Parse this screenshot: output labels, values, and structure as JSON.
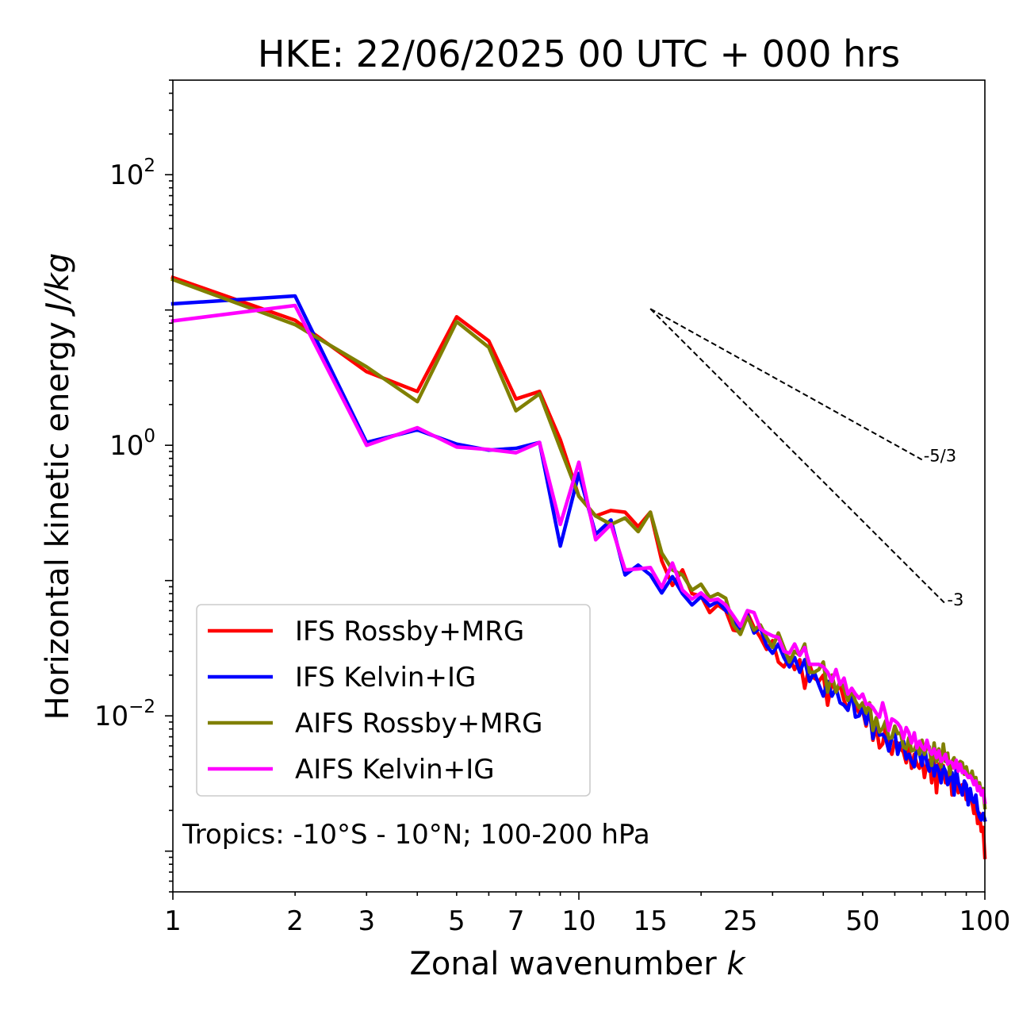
{
  "chart_data": {
    "type": "line",
    "title": "HKE: 22/06/2025 00 UTC + 000 hrs",
    "xlabel": "Zonal wavenumber",
    "xlabel_var": "k",
    "ylabel": "Horizontal kinetic energy",
    "ylabel_unit": "J/kg",
    "xscale": "log",
    "yscale": "log",
    "xlim": [
      1,
      100
    ],
    "ylim": [
      0.0005,
      500
    ],
    "x_ticks": [
      1,
      2,
      3,
      5,
      7,
      10,
      15,
      25,
      50,
      100
    ],
    "x_tick_labels": [
      "1",
      "2",
      "3",
      "5",
      "7",
      "10",
      "15",
      "25",
      "50",
      "100"
    ],
    "y_ticks": [
      {
        "base": "10",
        "exp": "2",
        "value": 100
      },
      {
        "base": "10",
        "exp": "0",
        "value": 1
      },
      {
        "base": "10",
        "exp": "−2",
        "value": 0.01
      }
    ],
    "grid": false,
    "legend_position": "lower-left",
    "annotation": "Tropics: -10°S - 10°N; 100-200 hPa",
    "reference_slopes": [
      {
        "label": "-5/3",
        "x_start": 15,
        "y_start": 10.2,
        "x_end": 70,
        "slope": -1.6667
      },
      {
        "label": "-3",
        "x_start": 15,
        "y_start": 10.2,
        "x_end": 80,
        "slope": -3
      }
    ],
    "x": [
      1,
      2,
      3,
      4,
      5,
      6,
      7,
      8,
      9,
      10,
      11,
      12,
      13,
      14,
      15,
      16,
      17,
      18,
      19,
      20,
      21,
      22,
      23,
      24,
      25,
      26,
      27,
      28,
      29,
      30,
      31,
      32,
      33,
      34,
      35,
      36,
      37,
      38,
      39,
      40,
      41,
      42,
      43,
      44,
      45,
      46,
      47,
      48,
      49,
      50,
      51,
      52,
      53,
      54,
      55,
      56,
      57,
      58,
      59,
      60,
      61,
      62,
      63,
      64,
      65,
      66,
      67,
      68,
      69,
      70,
      71,
      72,
      73,
      74,
      75,
      76,
      77,
      78,
      79,
      80,
      81,
      82,
      83,
      84,
      85,
      86,
      87,
      88,
      89,
      90,
      91,
      92,
      93,
      94,
      95,
      96,
      97,
      98,
      99,
      100
    ],
    "series": [
      {
        "name": "IFS Rossby+MRG",
        "color": "#ff0000",
        "values": [
          17.4,
          8.4,
          3.5,
          2.5,
          8.9,
          5.9,
          2.2,
          2.5,
          1.1,
          0.42,
          0.3,
          0.33,
          0.32,
          0.25,
          0.32,
          0.14,
          0.092,
          0.12,
          0.08,
          0.077,
          0.058,
          0.066,
          0.06,
          0.043,
          0.042,
          0.058,
          0.045,
          0.038,
          0.031,
          0.036,
          0.025,
          0.023,
          0.027,
          0.022,
          0.026,
          0.016,
          0.024,
          0.019,
          0.018,
          0.02,
          0.012,
          0.018,
          0.015,
          0.017,
          0.013,
          0.011,
          0.015,
          0.012,
          0.0105,
          0.011,
          0.0084,
          0.0115,
          0.0066,
          0.0083,
          0.0058,
          0.0062,
          0.0084,
          0.0059,
          0.0052,
          0.0065,
          0.0063,
          0.0057,
          0.0054,
          0.0045,
          0.0058,
          0.0041,
          0.0052,
          0.0044,
          0.0041,
          0.0049,
          0.0035,
          0.0045,
          0.0047,
          0.0032,
          0.0047,
          0.0027,
          0.0044,
          0.0037,
          0.0043,
          0.0032,
          0.0033,
          0.0041,
          0.0026,
          0.0036,
          0.0032,
          0.0027,
          0.0028,
          0.0031,
          0.0029,
          0.0024,
          0.0026,
          0.0025,
          0.0023,
          0.0019,
          0.0022,
          0.0016,
          0.0019,
          0.0014,
          0.0015,
          0.0009
        ]
      },
      {
        "name": "IFS Kelvin+IG",
        "color": "#0000ff",
        "values": [
          11.1,
          12.7,
          1.05,
          1.3,
          1.02,
          0.92,
          0.95,
          1.05,
          0.18,
          0.62,
          0.22,
          0.28,
          0.11,
          0.13,
          0.11,
          0.081,
          0.107,
          0.08,
          0.066,
          0.076,
          0.065,
          0.07,
          0.06,
          0.054,
          0.042,
          0.056,
          0.041,
          0.045,
          0.033,
          0.029,
          0.034,
          0.027,
          0.023,
          0.027,
          0.021,
          0.026,
          0.018,
          0.021,
          0.017,
          0.014,
          0.018,
          0.014,
          0.016,
          0.0125,
          0.012,
          0.011,
          0.015,
          0.0098,
          0.01,
          0.0115,
          0.0087,
          0.011,
          0.0068,
          0.0095,
          0.0072,
          0.0073,
          0.0068,
          0.0055,
          0.0069,
          0.0076,
          0.0052,
          0.0063,
          0.0065,
          0.0048,
          0.0052,
          0.0046,
          0.0042,
          0.0059,
          0.0053,
          0.0043,
          0.0061,
          0.0044,
          0.0039,
          0.0053,
          0.0036,
          0.0043,
          0.0039,
          0.0032,
          0.0042,
          0.0039,
          0.0031,
          0.0034,
          0.0038,
          0.0026,
          0.0041,
          0.0032,
          0.0029,
          0.0026,
          0.0033,
          0.0031,
          0.0022,
          0.0029,
          0.0024,
          0.0023,
          0.0026,
          0.002,
          0.0018,
          0.0017,
          0.0019,
          0.0017
        ]
      },
      {
        "name": "AIFS Rossby+MRG",
        "color": "#808000",
        "values": [
          16.8,
          7.8,
          3.8,
          2.1,
          8.2,
          5.3,
          1.8,
          2.4,
          0.95,
          0.42,
          0.3,
          0.26,
          0.29,
          0.23,
          0.32,
          0.16,
          0.12,
          0.11,
          0.085,
          0.094,
          0.075,
          0.08,
          0.074,
          0.047,
          0.04,
          0.054,
          0.043,
          0.047,
          0.038,
          0.032,
          0.041,
          0.032,
          0.025,
          0.03,
          0.028,
          0.034,
          0.021,
          0.021,
          0.022,
          0.025,
          0.015,
          0.02,
          0.015,
          0.018,
          0.016,
          0.013,
          0.0155,
          0.0128,
          0.0115,
          0.0125,
          0.0105,
          0.0125,
          0.0078,
          0.0097,
          0.0076,
          0.0081,
          0.0092,
          0.0068,
          0.0069,
          0.0084,
          0.0074,
          0.0075,
          0.0059,
          0.0057,
          0.0069,
          0.0055,
          0.0056,
          0.0063,
          0.0052,
          0.0066,
          0.0052,
          0.0059,
          0.0059,
          0.0043,
          0.0063,
          0.0046,
          0.0057,
          0.0042,
          0.0062,
          0.0046,
          0.0053,
          0.0037,
          0.0046,
          0.0049,
          0.0042,
          0.0044,
          0.0046,
          0.0045,
          0.0037,
          0.0042,
          0.0036,
          0.0035,
          0.0039,
          0.0033,
          0.0035,
          0.0029,
          0.0032,
          0.0027,
          0.0029,
          0.0021
        ]
      },
      {
        "name": "AIFS Kelvin+IG",
        "color": "#ff00ff",
        "values": [
          8.3,
          10.8,
          1.0,
          1.35,
          0.97,
          0.93,
          0.88,
          1.05,
          0.26,
          0.75,
          0.2,
          0.26,
          0.12,
          0.122,
          0.125,
          0.089,
          0.135,
          0.085,
          0.073,
          0.081,
          0.071,
          0.073,
          0.066,
          0.055,
          0.046,
          0.06,
          0.058,
          0.044,
          0.041,
          0.039,
          0.038,
          0.03,
          0.029,
          0.034,
          0.028,
          0.032,
          0.024,
          0.024,
          0.024,
          0.023,
          0.021,
          0.018,
          0.022,
          0.017,
          0.019,
          0.0145,
          0.016,
          0.0145,
          0.0135,
          0.0145,
          0.0122,
          0.0122,
          0.0115,
          0.0105,
          0.0098,
          0.0125,
          0.0102,
          0.0078,
          0.0095,
          0.0092,
          0.0088,
          0.0082,
          0.0068,
          0.0082,
          0.0075,
          0.0063,
          0.0075,
          0.0058,
          0.0065,
          0.0059,
          0.0056,
          0.0066,
          0.0056,
          0.0052,
          0.0057,
          0.0049,
          0.0055,
          0.0046,
          0.0048,
          0.0052,
          0.0044,
          0.0046,
          0.0045,
          0.0041,
          0.0047,
          0.0039,
          0.0044,
          0.0038,
          0.0039,
          0.0037,
          0.0035,
          0.0036,
          0.0034,
          0.0031,
          0.0033,
          0.0028,
          0.003,
          0.0026,
          0.0028,
          0.0023
        ]
      }
    ]
  }
}
